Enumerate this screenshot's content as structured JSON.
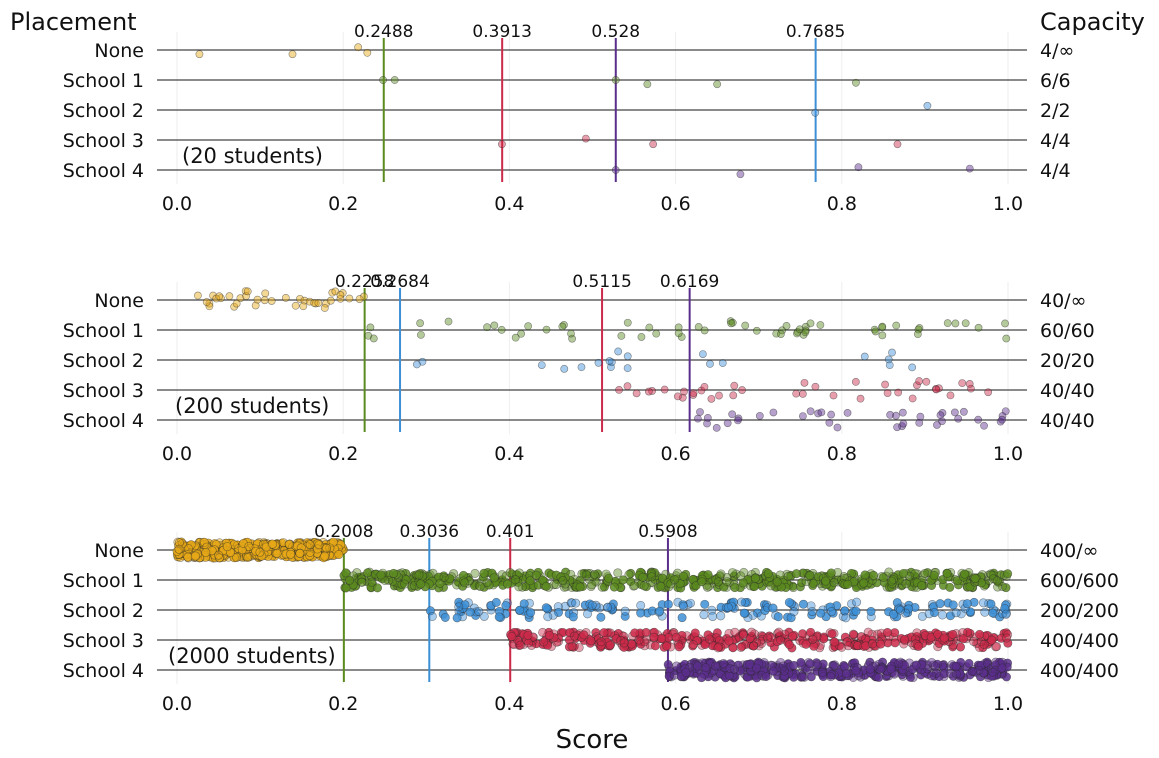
{
  "figure": {
    "ylabel_left": "Placement",
    "ylabel_right": "Capacity",
    "xlabel": "Score"
  },
  "colors": {
    "None": "#E6A817",
    "School 1": "#5B8A1F",
    "School 2": "#3D8FD6",
    "School 3": "#CC2A4A",
    "School 4": "#5A2E8C",
    "gridline": "#eeeeee",
    "row_line": "#444444"
  },
  "chart_data": [
    {
      "type": "scatter",
      "annotation": "(20 students)",
      "categories": [
        "None",
        "School 1",
        "School 2",
        "School 3",
        "School 4"
      ],
      "capacity_labels": [
        "4/∞",
        "6/6",
        "2/2",
        "4/4",
        "4/4"
      ],
      "xlim": [
        0,
        1
      ],
      "xticks": [
        "0.0",
        "0.2",
        "0.4",
        "0.6",
        "0.8",
        "1.0"
      ],
      "cutoffs": [
        {
          "value": 0.2488,
          "label": "0.2488",
          "school": "School 1"
        },
        {
          "value": 0.3913,
          "label": "0.3913",
          "school": "School 3"
        },
        {
          "value": 0.528,
          "label": "0.528",
          "school": "School 4"
        },
        {
          "value": 0.7685,
          "label": "0.7685",
          "school": "School 2"
        }
      ],
      "series": [
        {
          "name": "None",
          "x": [
            0.027,
            0.139,
            0.218,
            0.229
          ]
        },
        {
          "name": "School 1",
          "x": [
            0.248,
            0.262,
            0.528,
            0.566,
            0.65,
            0.817
          ]
        },
        {
          "name": "School 2",
          "x": [
            0.768,
            0.903
          ]
        },
        {
          "name": "School 3",
          "x": [
            0.391,
            0.492,
            0.573,
            0.867
          ]
        },
        {
          "name": "School 4",
          "x": [
            0.528,
            0.678,
            0.82,
            0.954
          ]
        }
      ]
    },
    {
      "type": "scatter",
      "annotation": "(200 students)",
      "categories": [
        "None",
        "School 1",
        "School 2",
        "School 3",
        "School 4"
      ],
      "capacity_labels": [
        "40/∞",
        "60/60",
        "20/20",
        "40/40",
        "40/40"
      ],
      "xlim": [
        0,
        1
      ],
      "xticks": [
        "0.0",
        "0.2",
        "0.4",
        "0.6",
        "0.8",
        "1.0"
      ],
      "cutoffs": [
        {
          "value": 0.2258,
          "label": "0.2258",
          "school": "School 1"
        },
        {
          "value": 0.2684,
          "label": "0.2684",
          "school": "School 2"
        },
        {
          "value": 0.5115,
          "label": "0.5115",
          "school": "School 3"
        },
        {
          "value": 0.6169,
          "label": "0.6169",
          "school": "School 4"
        }
      ],
      "series": [
        {
          "name": "None",
          "count": 40,
          "range": [
            0.0,
            0.2258
          ]
        },
        {
          "name": "School 1",
          "count": 60,
          "range": [
            0.2258,
            1.0
          ]
        },
        {
          "name": "School 2",
          "count": 20,
          "range": [
            0.2684,
            0.9
          ]
        },
        {
          "name": "School 3",
          "count": 40,
          "range": [
            0.5115,
            1.0
          ]
        },
        {
          "name": "School 4",
          "count": 40,
          "range": [
            0.6169,
            1.0
          ]
        }
      ]
    },
    {
      "type": "scatter",
      "annotation": "(2000 students)",
      "categories": [
        "None",
        "School 1",
        "School 2",
        "School 3",
        "School 4"
      ],
      "capacity_labels": [
        "400/∞",
        "600/600",
        "200/200",
        "400/400",
        "400/400"
      ],
      "xlim": [
        0,
        1
      ],
      "xticks": [
        "0.0",
        "0.2",
        "0.4",
        "0.6",
        "0.8",
        "1.0"
      ],
      "cutoffs": [
        {
          "value": 0.2008,
          "label": "0.2008",
          "school": "School 1"
        },
        {
          "value": 0.3036,
          "label": "0.3036",
          "school": "School 2"
        },
        {
          "value": 0.401,
          "label": "0.401",
          "school": "School 3"
        },
        {
          "value": 0.5908,
          "label": "0.5908",
          "school": "School 4"
        }
      ],
      "series": [
        {
          "name": "None",
          "count": 400,
          "range": [
            0.0,
            0.2008
          ]
        },
        {
          "name": "School 1",
          "count": 600,
          "range": [
            0.2008,
            1.0
          ]
        },
        {
          "name": "School 2",
          "count": 200,
          "range": [
            0.3036,
            1.0
          ]
        },
        {
          "name": "School 3",
          "count": 400,
          "range": [
            0.401,
            1.0
          ]
        },
        {
          "name": "School 4",
          "count": 400,
          "range": [
            0.5908,
            1.0
          ]
        }
      ]
    }
  ]
}
